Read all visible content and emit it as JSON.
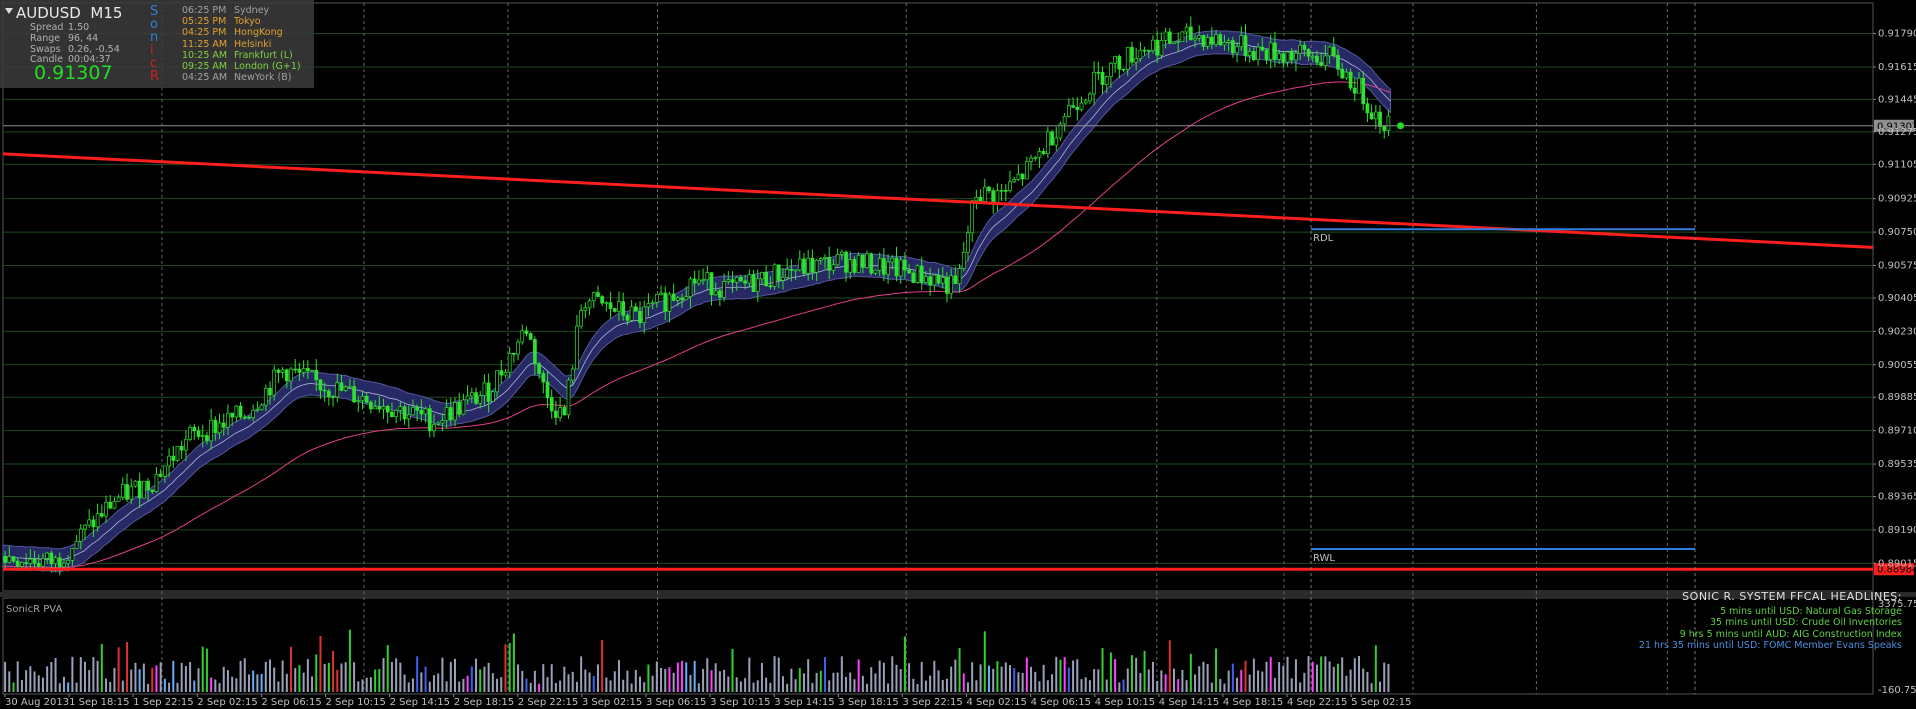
{
  "info_panel": {
    "symbol": "AUDUSD",
    "timeframe": "M15",
    "spread_label": "Spread",
    "spread_value": "1.50",
    "range_label": "Range",
    "range_value": "96, 44",
    "swaps_label": "Swaps",
    "swaps_value": "0.26, -0.54",
    "candle_label": "Candle",
    "candle_value": "00:04:37",
    "bid_price": "0.91307",
    "sonic_letters": [
      "S",
      "o",
      "n",
      "i",
      "c",
      "R"
    ],
    "sonic_colors": [
      "#2f7fe0",
      "#2f7fe0",
      "#2f7fe0",
      "#d02020",
      "#d02020",
      "#d02020"
    ],
    "sessions": [
      {
        "time": "06:25 PM",
        "city": "Sydney",
        "color": "#a0a0a0"
      },
      {
        "time": "05:25 PM",
        "city": "Tokyo",
        "color": "#e0a030"
      },
      {
        "time": "04:25 PM",
        "city": "HongKong",
        "color": "#e0a030"
      },
      {
        "time": "11:25 AM",
        "city": "Helsinki",
        "color": "#e0a030"
      },
      {
        "time": "10:25 AM",
        "city": "Frankfurt  (L)",
        "color": "#7fd03f"
      },
      {
        "time": "09:25 AM",
        "city": "London  (G+1)",
        "color": "#7fd03f"
      },
      {
        "time": "04:25 AM",
        "city": "NewYork  (B)",
        "color": "#a0a0a0"
      }
    ]
  },
  "price_tags": {
    "current": "0.91307",
    "support": "0.88984"
  },
  "levels": {
    "rdl_label": "RDL",
    "rwl_label": "RWL"
  },
  "subwindow": {
    "title": "SonicR PVA",
    "scale_top": "3375.75",
    "scale_bottom": "-160.75"
  },
  "news": {
    "header": "SONIC R. SYSTEM  FFCAL HEADLINES:",
    "items": [
      {
        "text": "5 mins until USD: Natural Gas Storage",
        "color": "#5fd040"
      },
      {
        "text": "35 mins until USD: Crude Oil Inventories",
        "color": "#5fd040"
      },
      {
        "text": "9 hrs 5 mins until AUD: AIG Construction Index",
        "color": "#5fd040"
      },
      {
        "text": "21 hrs 35 mins until USD: FOMC Member Evans Speaks",
        "color": "#4a90e0"
      }
    ]
  },
  "chart_data": {
    "type": "line",
    "price_axis_ticks": [
      "0.91790",
      "0.91615",
      "0.91445",
      "0.91275",
      "0.91105",
      "0.90925",
      "0.90750",
      "0.90575",
      "0.90405",
      "0.90230",
      "0.90055",
      "0.89885",
      "0.89710",
      "0.89535",
      "0.89365",
      "0.89190",
      "0.89015"
    ],
    "time_axis_ticks": [
      "30 Aug 2013",
      "1 Sep 18:15",
      "1 Sep 22:15",
      "2 Sep 02:15",
      "2 Sep 06:15",
      "2 Sep 10:15",
      "2 Sep 14:15",
      "2 Sep 18:15",
      "2 Sep 22:15",
      "3 Sep 02:15",
      "3 Sep 06:15",
      "3 Sep 10:15",
      "3 Sep 14:15",
      "3 Sep 18:15",
      "3 Sep 22:15",
      "4 Sep 02:15",
      "4 Sep 06:15",
      "4 Sep 10:15",
      "4 Sep 14:15",
      "4 Sep 18:15",
      "4 Sep 22:15",
      "5 Sep 02:15"
    ],
    "ylim": [
      0.8887,
      0.9195
    ],
    "close_price": 0.91307,
    "support_level": 0.88984,
    "rdl_level": 0.90765,
    "rwl_level": 0.8909,
    "trendline": {
      "start": 0.9116,
      "end": 0.9067
    },
    "price_path": [
      [
        0,
        0.8905
      ],
      [
        0.028,
        0.8902
      ],
      [
        0.06,
        0.8935
      ],
      [
        0.08,
        0.8945
      ],
      [
        0.1,
        0.8968
      ],
      [
        0.13,
        0.898
      ],
      [
        0.15,
        0.9003
      ],
      [
        0.17,
        0.8995
      ],
      [
        0.2,
        0.8986
      ],
      [
        0.23,
        0.8976
      ],
      [
        0.26,
        0.8992
      ],
      [
        0.28,
        0.9025
      ],
      [
        0.29,
        0.899
      ],
      [
        0.3,
        0.8978
      ],
      [
        0.31,
        0.904
      ],
      [
        0.34,
        0.903
      ],
      [
        0.37,
        0.905
      ],
      [
        0.39,
        0.9045
      ],
      [
        0.42,
        0.9055
      ],
      [
        0.45,
        0.906
      ],
      [
        0.48,
        0.9055
      ],
      [
        0.5,
        0.905
      ],
      [
        0.51,
        0.9045
      ],
      [
        0.52,
        0.9095
      ],
      [
        0.535,
        0.9095
      ],
      [
        0.55,
        0.911
      ],
      [
        0.57,
        0.914
      ],
      [
        0.59,
        0.916
      ],
      [
        0.61,
        0.9172
      ],
      [
        0.64,
        0.9178
      ],
      [
        0.67,
        0.917
      ],
      [
        0.69,
        0.9168
      ],
      [
        0.71,
        0.9166
      ],
      [
        0.725,
        0.915
      ],
      [
        0.735,
        0.9135
      ],
      [
        0.742,
        0.9131
      ]
    ],
    "volume_colors": [
      "#9aa0b8",
      "#e03030",
      "#30d030",
      "#4060f0",
      "#ff40ff",
      "#60b0ff"
    ]
  }
}
